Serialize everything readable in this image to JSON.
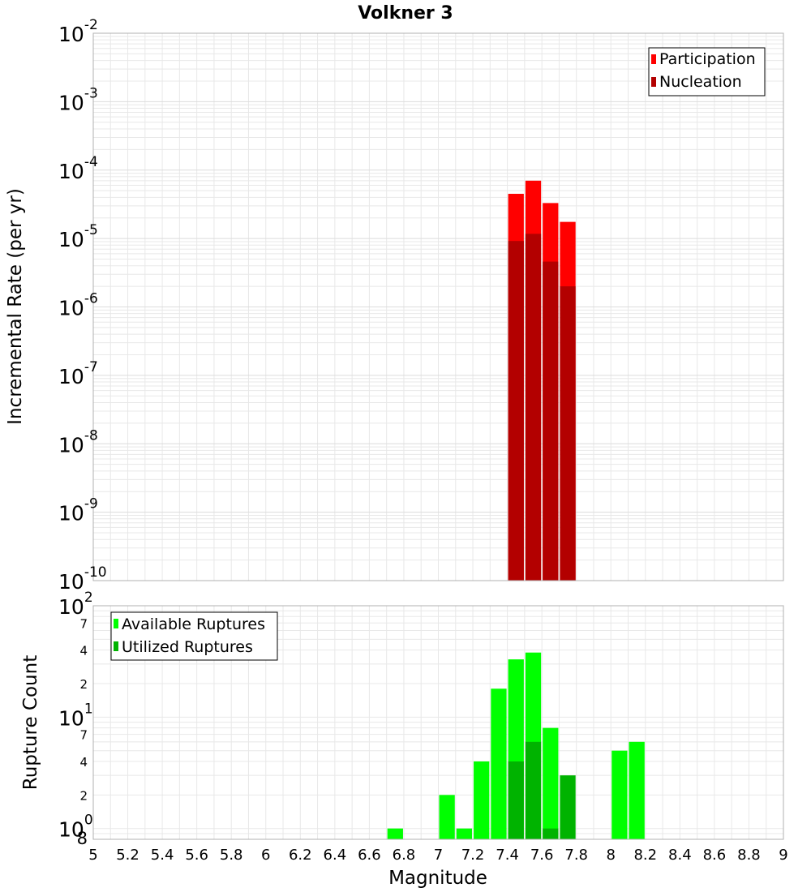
{
  "chart_data": [
    {
      "type": "bar",
      "title": "Volkner 3",
      "xlabel": "",
      "ylabel": "Incremental Rate (per yr)",
      "yscale": "log",
      "ylim": [
        1e-10,
        0.01
      ],
      "xlim": [
        5,
        9
      ],
      "y_tick_labels": [
        {
          "base": "10",
          "exp": "-10"
        },
        {
          "base": "10",
          "exp": "-9"
        },
        {
          "base": "10",
          "exp": "-8"
        },
        {
          "base": "10",
          "exp": "-7"
        },
        {
          "base": "10",
          "exp": "-6"
        },
        {
          "base": "10",
          "exp": "-5"
        },
        {
          "base": "10",
          "exp": "-4"
        },
        {
          "base": "10",
          "exp": "-3"
        },
        {
          "base": "10",
          "exp": "-2"
        }
      ],
      "legend_position": "top-right",
      "series": [
        {
          "name": "Participation",
          "color": "#ff0000",
          "x": [
            7.45,
            7.55,
            7.65,
            7.75
          ],
          "values": [
            4.5e-05,
            7e-05,
            3.3e-05,
            1.75e-05
          ]
        },
        {
          "name": "Nucleation",
          "color": "#b30000",
          "x": [
            7.45,
            7.55,
            7.65,
            7.75
          ],
          "values": [
            9.2e-06,
            1.17e-05,
            4.6e-06,
            2e-06
          ]
        }
      ]
    },
    {
      "type": "bar",
      "title": "",
      "xlabel": "Magnitude",
      "ylabel": "Rupture Count",
      "yscale": "log",
      "ylim": [
        0.8,
        100
      ],
      "xlim": [
        5,
        9
      ],
      "x_tick_labels": [
        "5",
        "5.2",
        "5.4",
        "5.6",
        "5.8",
        "6",
        "6.2",
        "6.4",
        "6.6",
        "6.8",
        "7",
        "7.2",
        "7.4",
        "7.6",
        "7.8",
        "8",
        "8.2",
        "8.4",
        "8.6",
        "8.8",
        "9"
      ],
      "y_major_tick_labels": [
        {
          "base": "10",
          "exp": "0"
        },
        {
          "base": "10",
          "exp": "1"
        },
        {
          "base": "10",
          "exp": "2"
        }
      ],
      "y_minor_tick_labels": [
        {
          "label": "8",
          "value": 0.8
        },
        {
          "label": "2",
          "value": 2
        },
        {
          "label": "4",
          "value": 4
        },
        {
          "label": "7",
          "value": 7
        },
        {
          "label": "2",
          "value": 20
        },
        {
          "label": "4",
          "value": 40
        },
        {
          "label": "7",
          "value": 70
        }
      ],
      "legend_position": "top-left",
      "series": [
        {
          "name": "Available Ruptures",
          "color": "#00ff00",
          "x": [
            6.75,
            7.05,
            7.15,
            7.25,
            7.35,
            7.45,
            7.55,
            7.65,
            8.05,
            8.15
          ],
          "values": [
            1,
            2,
            1,
            4,
            18,
            33,
            38,
            8,
            5,
            6
          ]
        },
        {
          "name": "Utilized Ruptures",
          "color": "#00b300",
          "x": [
            7.45,
            7.55,
            7.65,
            7.75
          ],
          "values": [
            4,
            6,
            1,
            3
          ]
        }
      ]
    }
  ]
}
